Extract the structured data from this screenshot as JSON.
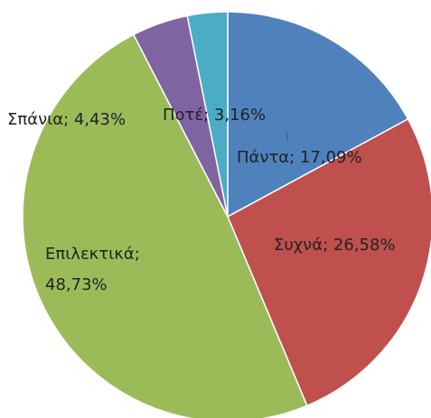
{
  "chart_data": {
    "type": "pie",
    "values": [
      17.09,
      26.58,
      48.73,
      4.43,
      3.16
    ],
    "value_labels": [
      "Πάντα; 17,09%",
      "Συχνά; 26,58%",
      "Επιλεκτικά; 48,73%",
      "Σπάνια; 4,43%",
      "Ποτέ; 3,16%"
    ],
    "colors": [
      "#4f81bd",
      "#c0504d",
      "#9bbb59",
      "#8064a2",
      "#4bacc6"
    ]
  }
}
